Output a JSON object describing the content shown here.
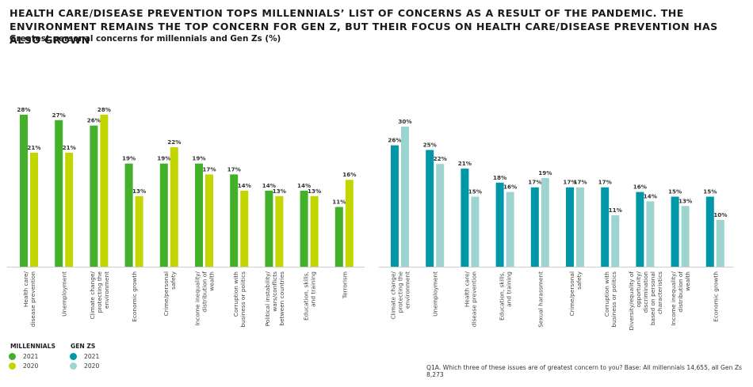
{
  "header": {
    "title": "HEALTH CARE/DISEASE PREVENTION TOPS MILLENNIALS’ LIST OF CONCERNS AS A RESULT OF THE PANDEMIC. THE ENVIRONMENT REMAINS THE TOP CONCERN FOR GEN Z, BUT THEIR FOCUS ON HEALTH CARE/DISEASE PREVENTION HAS ALSO GROWN",
    "subtitle": "Greatest personal concerns for millennials and Gen Zs (%)"
  },
  "legend": {
    "millennials": {
      "title": "MILLENNIALS",
      "items": [
        {
          "label": "2021",
          "color": "#43b02a"
        },
        {
          "label": "2020",
          "color": "#c4d600"
        }
      ]
    },
    "genz": {
      "title": "GEN ZS",
      "items": [
        {
          "label": "2021",
          "color": "#0097a9"
        },
        {
          "label": "2020",
          "color": "#9dd4cf"
        }
      ]
    }
  },
  "footnote": "Q1A. Which three of these issues are of greatest concern to you? Base: All millennials 14,655, all Gen Zs 8,273",
  "chart_data": [
    {
      "type": "bar",
      "group": "Millennials",
      "title": "Millennials",
      "xlabel": "",
      "ylabel": "%",
      "ylim": [
        0,
        28
      ],
      "categories": [
        "Health care/ disease prevention",
        "Unemployment",
        "Climate change/ protecting the environment",
        "Economic growth",
        "Crime/personal safety",
        "Income inequality/ distribution of wealth",
        "Corruption with business or politics",
        "Political instability/ wars/conflicts between countries",
        "Education, skills, and training",
        "Terrorism"
      ],
      "category_lines": [
        [
          "Health care/",
          "disease prevention"
        ],
        [
          "Unemployment"
        ],
        [
          "Climate change/",
          "protecting the",
          "environment"
        ],
        [
          "Economic growth"
        ],
        [
          "Crime/personal",
          "safety"
        ],
        [
          "Income inequality/",
          "distribution of",
          "wealth"
        ],
        [
          "Corruption with",
          "business or politics"
        ],
        [
          "Political instability/",
          "wars/conflicts",
          "between countries"
        ],
        [
          "Education, skills,",
          "and training"
        ],
        [
          "Terrorism"
        ]
      ],
      "series": [
        {
          "name": "2021",
          "color": "#43b02a",
          "values": [
            28,
            27,
            26,
            19,
            19,
            19,
            17,
            14,
            14,
            11
          ]
        },
        {
          "name": "2020",
          "color": "#c4d600",
          "values": [
            21,
            21,
            28,
            13,
            22,
            17,
            14,
            13,
            13,
            16
          ]
        }
      ],
      "grid": false,
      "legend": "bottom-left"
    },
    {
      "type": "bar",
      "group": "Gen Zs",
      "title": "Gen Zs",
      "xlabel": "",
      "ylabel": "%",
      "ylim": [
        0,
        30
      ],
      "categories": [
        "Climate change/ protecting the environment",
        "Unemployment",
        "Health care/ disease prevention",
        "Education, skills, and training",
        "Sexual harassment",
        "Crime/personal safety",
        "Corruption with business or politics",
        "Diversity/equality of opportunity/ discrimination based on personal characteristics",
        "Income inequality/ distribution of wealth",
        "Economic growth"
      ],
      "category_lines": [
        [
          "Climate change/",
          "protecting the",
          "environment"
        ],
        [
          "Unemployment"
        ],
        [
          "Health care/",
          "disease prevention"
        ],
        [
          "Education, skills,",
          "and training"
        ],
        [
          "Sexual harassment"
        ],
        [
          "Crime/personal",
          "safety"
        ],
        [
          "Corruption with",
          "business or politics"
        ],
        [
          "Diversity/equality of",
          "opportunity/",
          "discrimination",
          "based on personal",
          "characteristics"
        ],
        [
          "Income inequality/",
          "distribution of",
          "wealth"
        ],
        [
          "Economic growth"
        ]
      ],
      "series": [
        {
          "name": "2021",
          "color": "#0097a9",
          "values": [
            26,
            25,
            21,
            18,
            17,
            17,
            17,
            16,
            15,
            15
          ]
        },
        {
          "name": "2020",
          "color": "#9dd4cf",
          "values": [
            30,
            22,
            15,
            16,
            19,
            17,
            11,
            14,
            13,
            10
          ]
        }
      ],
      "grid": false,
      "legend": "bottom-left"
    }
  ]
}
